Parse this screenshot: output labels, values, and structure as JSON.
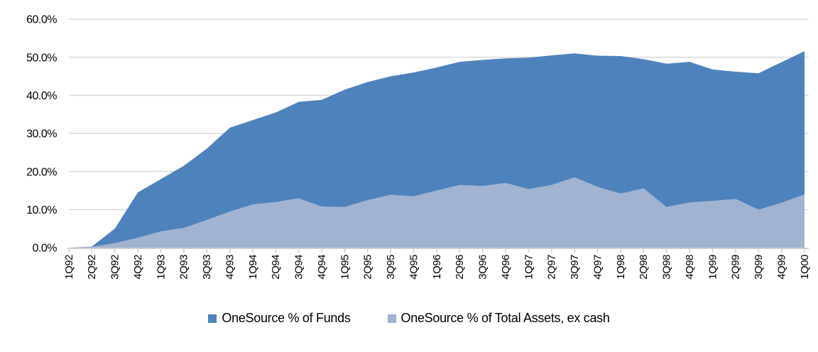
{
  "chart_data": {
    "type": "area",
    "mode": "overlapping",
    "title": "",
    "xlabel": "",
    "ylabel": "",
    "ylim": [
      0,
      60
    ],
    "ytick_step": 10,
    "ytick_labels": [
      "0.0%",
      "10.0%",
      "20.0%",
      "30.0%",
      "40.0%",
      "50.0%",
      "60.0%"
    ],
    "grid": "horizontal",
    "legend_position": "bottom-center",
    "gridline_color": "#D9D9D9",
    "axis_color": "#D0CECE",
    "text_color": "#000000",
    "background": "#FFFFFF",
    "categories": [
      "1Q92",
      "2Q92",
      "3Q92",
      "4Q92",
      "1Q93",
      "2Q93",
      "3Q93",
      "4Q93",
      "1Q94",
      "2Q94",
      "3Q94",
      "4Q94",
      "1Q95",
      "2Q95",
      "3Q95",
      "4Q95",
      "1Q96",
      "2Q96",
      "3Q96",
      "4Q96",
      "1Q97",
      "2Q97",
      "3Q97",
      "4Q97",
      "1Q98",
      "2Q98",
      "3Q98",
      "4Q98",
      "1Q99",
      "2Q99",
      "3Q99",
      "4Q99",
      "1Q00"
    ],
    "series": [
      {
        "name": "OneSource % of Funds",
        "color": "#4E82BC",
        "values": [
          0,
          0.3,
          5,
          14.5,
          18,
          21.5,
          26,
          31.5,
          33.5,
          35.5,
          38.3,
          38.8,
          41.5,
          43.5,
          45,
          46,
          47.3,
          48.8,
          49.3,
          49.7,
          49.9,
          50.5,
          51,
          50.4,
          50.3,
          49.5,
          48.3,
          48.8,
          46.8,
          46.2,
          45.8,
          48.7,
          51.6
        ]
      },
      {
        "name": "OneSource % of Total Assets, ex cash",
        "color": "#A1B3D0",
        "values": [
          0,
          0.2,
          1.2,
          2.6,
          4.3,
          5.2,
          7.3,
          9.5,
          11.4,
          12,
          13,
          10.8,
          10.7,
          12.5,
          13.9,
          13.5,
          15,
          16.5,
          16.2,
          17,
          15.4,
          16.5,
          18.5,
          16,
          14.2,
          15.6,
          10.7,
          11.9,
          12.3,
          12.8,
          10,
          11.8,
          14
        ]
      }
    ]
  }
}
